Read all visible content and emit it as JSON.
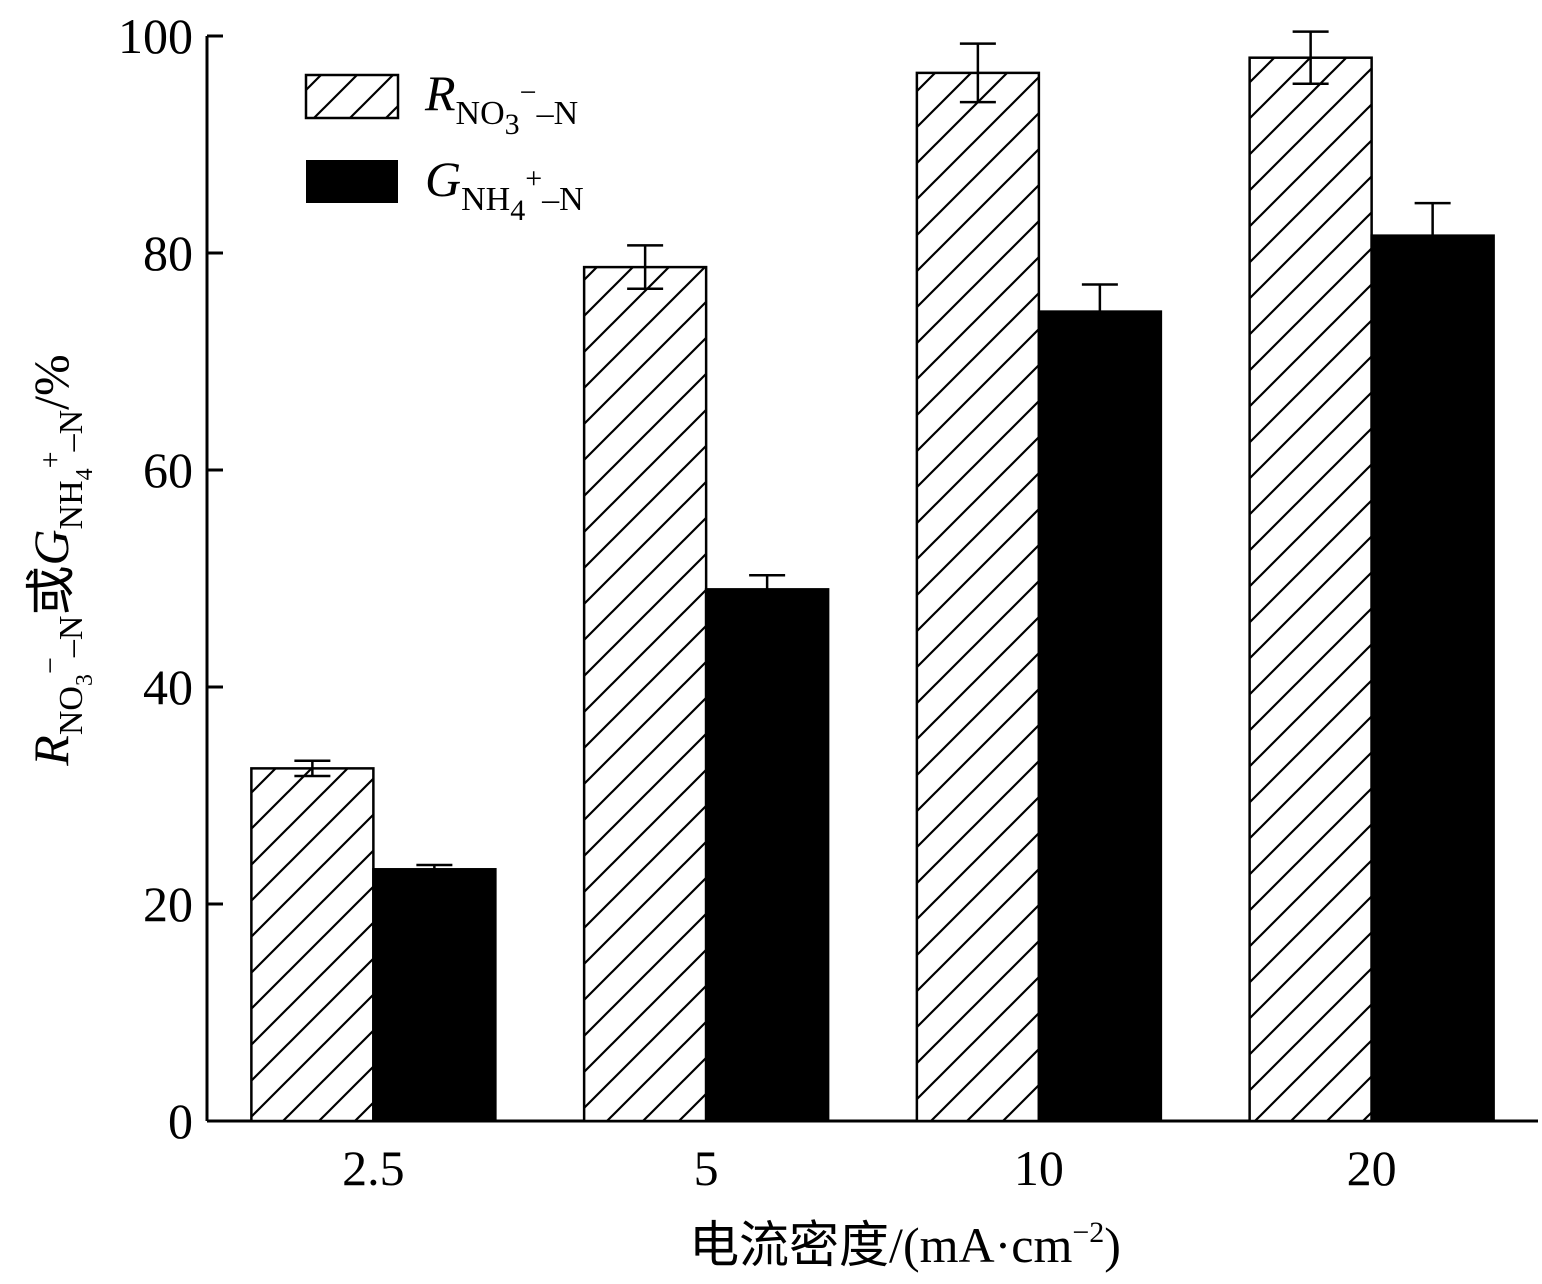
{
  "chart_data": {
    "type": "bar",
    "categories": [
      "2.5",
      "5",
      "10",
      "20"
    ],
    "series": [
      {
        "key": "R",
        "legend": {
          "main": "R",
          "sub": "NO",
          "sub2": "3",
          "sup": "−",
          "tail": "–N"
        },
        "values": [
          32.5,
          78.7,
          96.6,
          98.0
        ],
        "errors": [
          0.7,
          2.0,
          2.7,
          2.4
        ],
        "fill": "hatch"
      },
      {
        "key": "G",
        "legend": {
          "main": "G",
          "sub": "NH",
          "sub2": "4",
          "sup": "+",
          "tail": "–N"
        },
        "values": [
          23.2,
          49.0,
          74.6,
          81.6
        ],
        "errors": [
          0.4,
          1.3,
          2.5,
          3.0
        ],
        "fill": "#000000"
      }
    ],
    "ylim": [
      0,
      100
    ],
    "yticks": [
      "0",
      "20",
      "40",
      "60",
      "80",
      "100"
    ],
    "xlabel": {
      "text": "电流密度/(mA·cm",
      "sup": "−2",
      "tail": ")"
    },
    "ylabel": {
      "r_main": "R",
      "r_sub": "NO",
      "r_sub2": "3",
      "r_sup": "−",
      "r_tail": "–N",
      "conj": "或",
      "g_main": "G",
      "g_sub": "NH",
      "g_sub2": "4",
      "g_sup": "+",
      "g_tail": "–N",
      "unit": "/%"
    },
    "legend_position": "top-left",
    "grid": false
  }
}
